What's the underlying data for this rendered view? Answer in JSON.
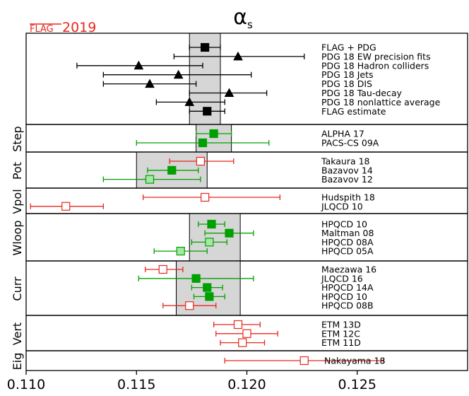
{
  "chart_data": {
    "type": "scatter",
    "title": "α",
    "title_sub": "s",
    "corner_label_strike": "FLAG",
    "corner_label_year": "2019",
    "colors": {
      "black": "#000000",
      "green": "#00a000",
      "red": "#e8281e",
      "lightgreen": "#a6e6a6",
      "band": "#d6d6d6"
    },
    "xlim": [
      0.11,
      0.13
    ],
    "xticks": [
      "0.110",
      "0.115",
      "0.120",
      "0.125"
    ],
    "xtick_values": [
      0.11,
      0.115,
      0.12,
      0.125
    ],
    "panels": [
      {
        "name": "",
        "band": [
          0.1174,
          0.1188
        ],
        "points": [
          {
            "label": "FLAG + PDG",
            "x": 0.1181,
            "lo": 0.1174,
            "hi": 0.1188,
            "marker": "square",
            "color": "black",
            "filled": true
          },
          {
            "label": "PDG 18 EW precision fits",
            "x": 0.1196,
            "lo": 0.1167,
            "hi": 0.1226,
            "marker": "triangle",
            "color": "black",
            "filled": true
          },
          {
            "label": "PDG 18 Hadron colliders",
            "x": 0.1151,
            "lo": 0.1123,
            "hi": 0.118,
            "marker": "triangle",
            "color": "black",
            "filled": true
          },
          {
            "label": "PDG 18 Jets",
            "x": 0.1169,
            "lo": 0.1135,
            "hi": 0.1202,
            "marker": "triangle",
            "color": "black",
            "filled": true
          },
          {
            "label": "PDG 18 DIS",
            "x": 0.1156,
            "lo": 0.1135,
            "hi": 0.1177,
            "marker": "triangle",
            "color": "black",
            "filled": true
          },
          {
            "label": "PDG 18 Tau-decay",
            "x": 0.1192,
            "lo": 0.1174,
            "hi": 0.1209,
            "marker": "triangle",
            "color": "black",
            "filled": true
          },
          {
            "label": "PDG 18 nonlattice average",
            "x": 0.1174,
            "lo": 0.1159,
            "hi": 0.119,
            "marker": "triangle",
            "color": "black",
            "filled": true
          },
          {
            "label": "FLAG estimate",
            "x": 0.1182,
            "lo": 0.1174,
            "hi": 0.119,
            "marker": "square",
            "color": "black",
            "filled": true
          }
        ]
      },
      {
        "name": "Step",
        "band": [
          0.1177,
          0.1193
        ],
        "points": [
          {
            "label": "ALPHA 17",
            "x": 0.1185,
            "lo": 0.1177,
            "hi": 0.1193,
            "marker": "square",
            "color": "green",
            "filled": true
          },
          {
            "label": "PACS-CS 09A",
            "x": 0.118,
            "lo": 0.115,
            "hi": 0.121,
            "marker": "square",
            "color": "green",
            "filled": true
          }
        ]
      },
      {
        "name": "Pot",
        "band": [
          0.115,
          0.1182
        ],
        "points": [
          {
            "label": "Takaura 18",
            "x": 0.1179,
            "lo": 0.1165,
            "hi": 0.1194,
            "marker": "square",
            "color": "red",
            "filled": false
          },
          {
            "label": "Bazavov 14",
            "x": 0.1166,
            "lo": 0.1155,
            "hi": 0.1178,
            "marker": "square",
            "color": "green",
            "filled": true
          },
          {
            "label": "Bazavov 12",
            "x": 0.1156,
            "lo": 0.1135,
            "hi": 0.1179,
            "marker": "square",
            "color": "green",
            "filled": false
          }
        ]
      },
      {
        "name": "Vpol",
        "band": null,
        "points": [
          {
            "label": "Hudspith 18",
            "x": 0.1181,
            "lo": 0.1153,
            "hi": 0.1215,
            "marker": "square",
            "color": "red",
            "filled": false
          },
          {
            "label": "JLQCD 10",
            "x": 0.1118,
            "lo": 0.1102,
            "hi": 0.1135,
            "marker": "square",
            "color": "red",
            "filled": false
          }
        ]
      },
      {
        "name": "Wloop",
        "band": [
          0.1174,
          0.1197
        ],
        "points": [
          {
            "label": "HPQCD 10",
            "x": 0.1184,
            "lo": 0.1178,
            "hi": 0.119,
            "marker": "square",
            "color": "green",
            "filled": true
          },
          {
            "label": "Maltman 08",
            "x": 0.1192,
            "lo": 0.1181,
            "hi": 0.1203,
            "marker": "square",
            "color": "green",
            "filled": true
          },
          {
            "label": "HPQCD 08A",
            "x": 0.1183,
            "lo": 0.1175,
            "hi": 0.1191,
            "marker": "square",
            "color": "green",
            "filled": false
          },
          {
            "label": "HPQCD 05A",
            "x": 0.117,
            "lo": 0.1158,
            "hi": 0.1182,
            "marker": "square",
            "color": "green",
            "filled": false
          }
        ]
      },
      {
        "name": "Curr",
        "band": [
          0.1168,
          0.1197
        ],
        "points": [
          {
            "label": "Maezawa 16",
            "x": 0.1162,
            "lo": 0.1154,
            "hi": 0.1171,
            "marker": "square",
            "color": "red",
            "filled": false
          },
          {
            "label": "JLQCD 16",
            "x": 0.1177,
            "lo": 0.1151,
            "hi": 0.1203,
            "marker": "square",
            "color": "green",
            "filled": true
          },
          {
            "label": "HPQCD 14A",
            "x": 0.1182,
            "lo": 0.1175,
            "hi": 0.1189,
            "marker": "square",
            "color": "green",
            "filled": true
          },
          {
            "label": "HPQCD 10",
            "x": 0.1183,
            "lo": 0.1176,
            "hi": 0.119,
            "marker": "square",
            "color": "green",
            "filled": true
          },
          {
            "label": "HPQCD 08B",
            "x": 0.1174,
            "lo": 0.1162,
            "hi": 0.1186,
            "marker": "square",
            "color": "red",
            "filled": false
          }
        ]
      },
      {
        "name": "Vert",
        "band": null,
        "points": [
          {
            "label": "ETM 13D",
            "x": 0.1196,
            "lo": 0.1185,
            "hi": 0.1206,
            "marker": "square",
            "color": "red",
            "filled": false
          },
          {
            "label": "ETM 12C",
            "x": 0.12,
            "lo": 0.1186,
            "hi": 0.1214,
            "marker": "square",
            "color": "red",
            "filled": false
          },
          {
            "label": "ETM 11D",
            "x": 0.1198,
            "lo": 0.1188,
            "hi": 0.1208,
            "marker": "square",
            "color": "red",
            "filled": false
          }
        ]
      },
      {
        "name": "Eig",
        "band": null,
        "points": [
          {
            "label": "Nakayama 18",
            "x": 0.1226,
            "lo": 0.119,
            "hi": 0.1262,
            "marker": "square",
            "color": "red",
            "filled": false
          }
        ]
      }
    ]
  }
}
